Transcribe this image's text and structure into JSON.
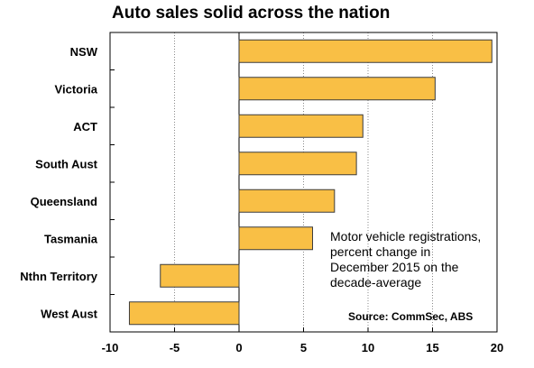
{
  "chart_data": {
    "type": "bar",
    "orientation": "horizontal",
    "title": "Auto sales solid across the nation",
    "categories": [
      "NSW",
      "Victoria",
      "ACT",
      "South Aust",
      "Queensland",
      "Tasmania",
      "Nthn Territory",
      "West Aust"
    ],
    "values": [
      19.6,
      15.2,
      9.6,
      9.1,
      7.4,
      5.7,
      -6.1,
      -8.5
    ],
    "xlim": [
      -10,
      20
    ],
    "xticks": [
      -10,
      -5,
      0,
      5,
      10,
      15,
      20
    ],
    "xtick_labels": [
      "-10",
      "-5",
      "0",
      "5",
      "10",
      "15",
      "20"
    ],
    "grid": "vertical dotted",
    "annotation": [
      "Motor vehicle registrations,",
      "percent change in",
      "December 2015 on the",
      "decade-average"
    ],
    "source": "Source: CommSec, ABS",
    "colors": {
      "bar_fill": "#f9bf45",
      "bar_stroke": "#3c3c3c",
      "grid": "#8a8a8a",
      "axis": "#000000"
    }
  }
}
